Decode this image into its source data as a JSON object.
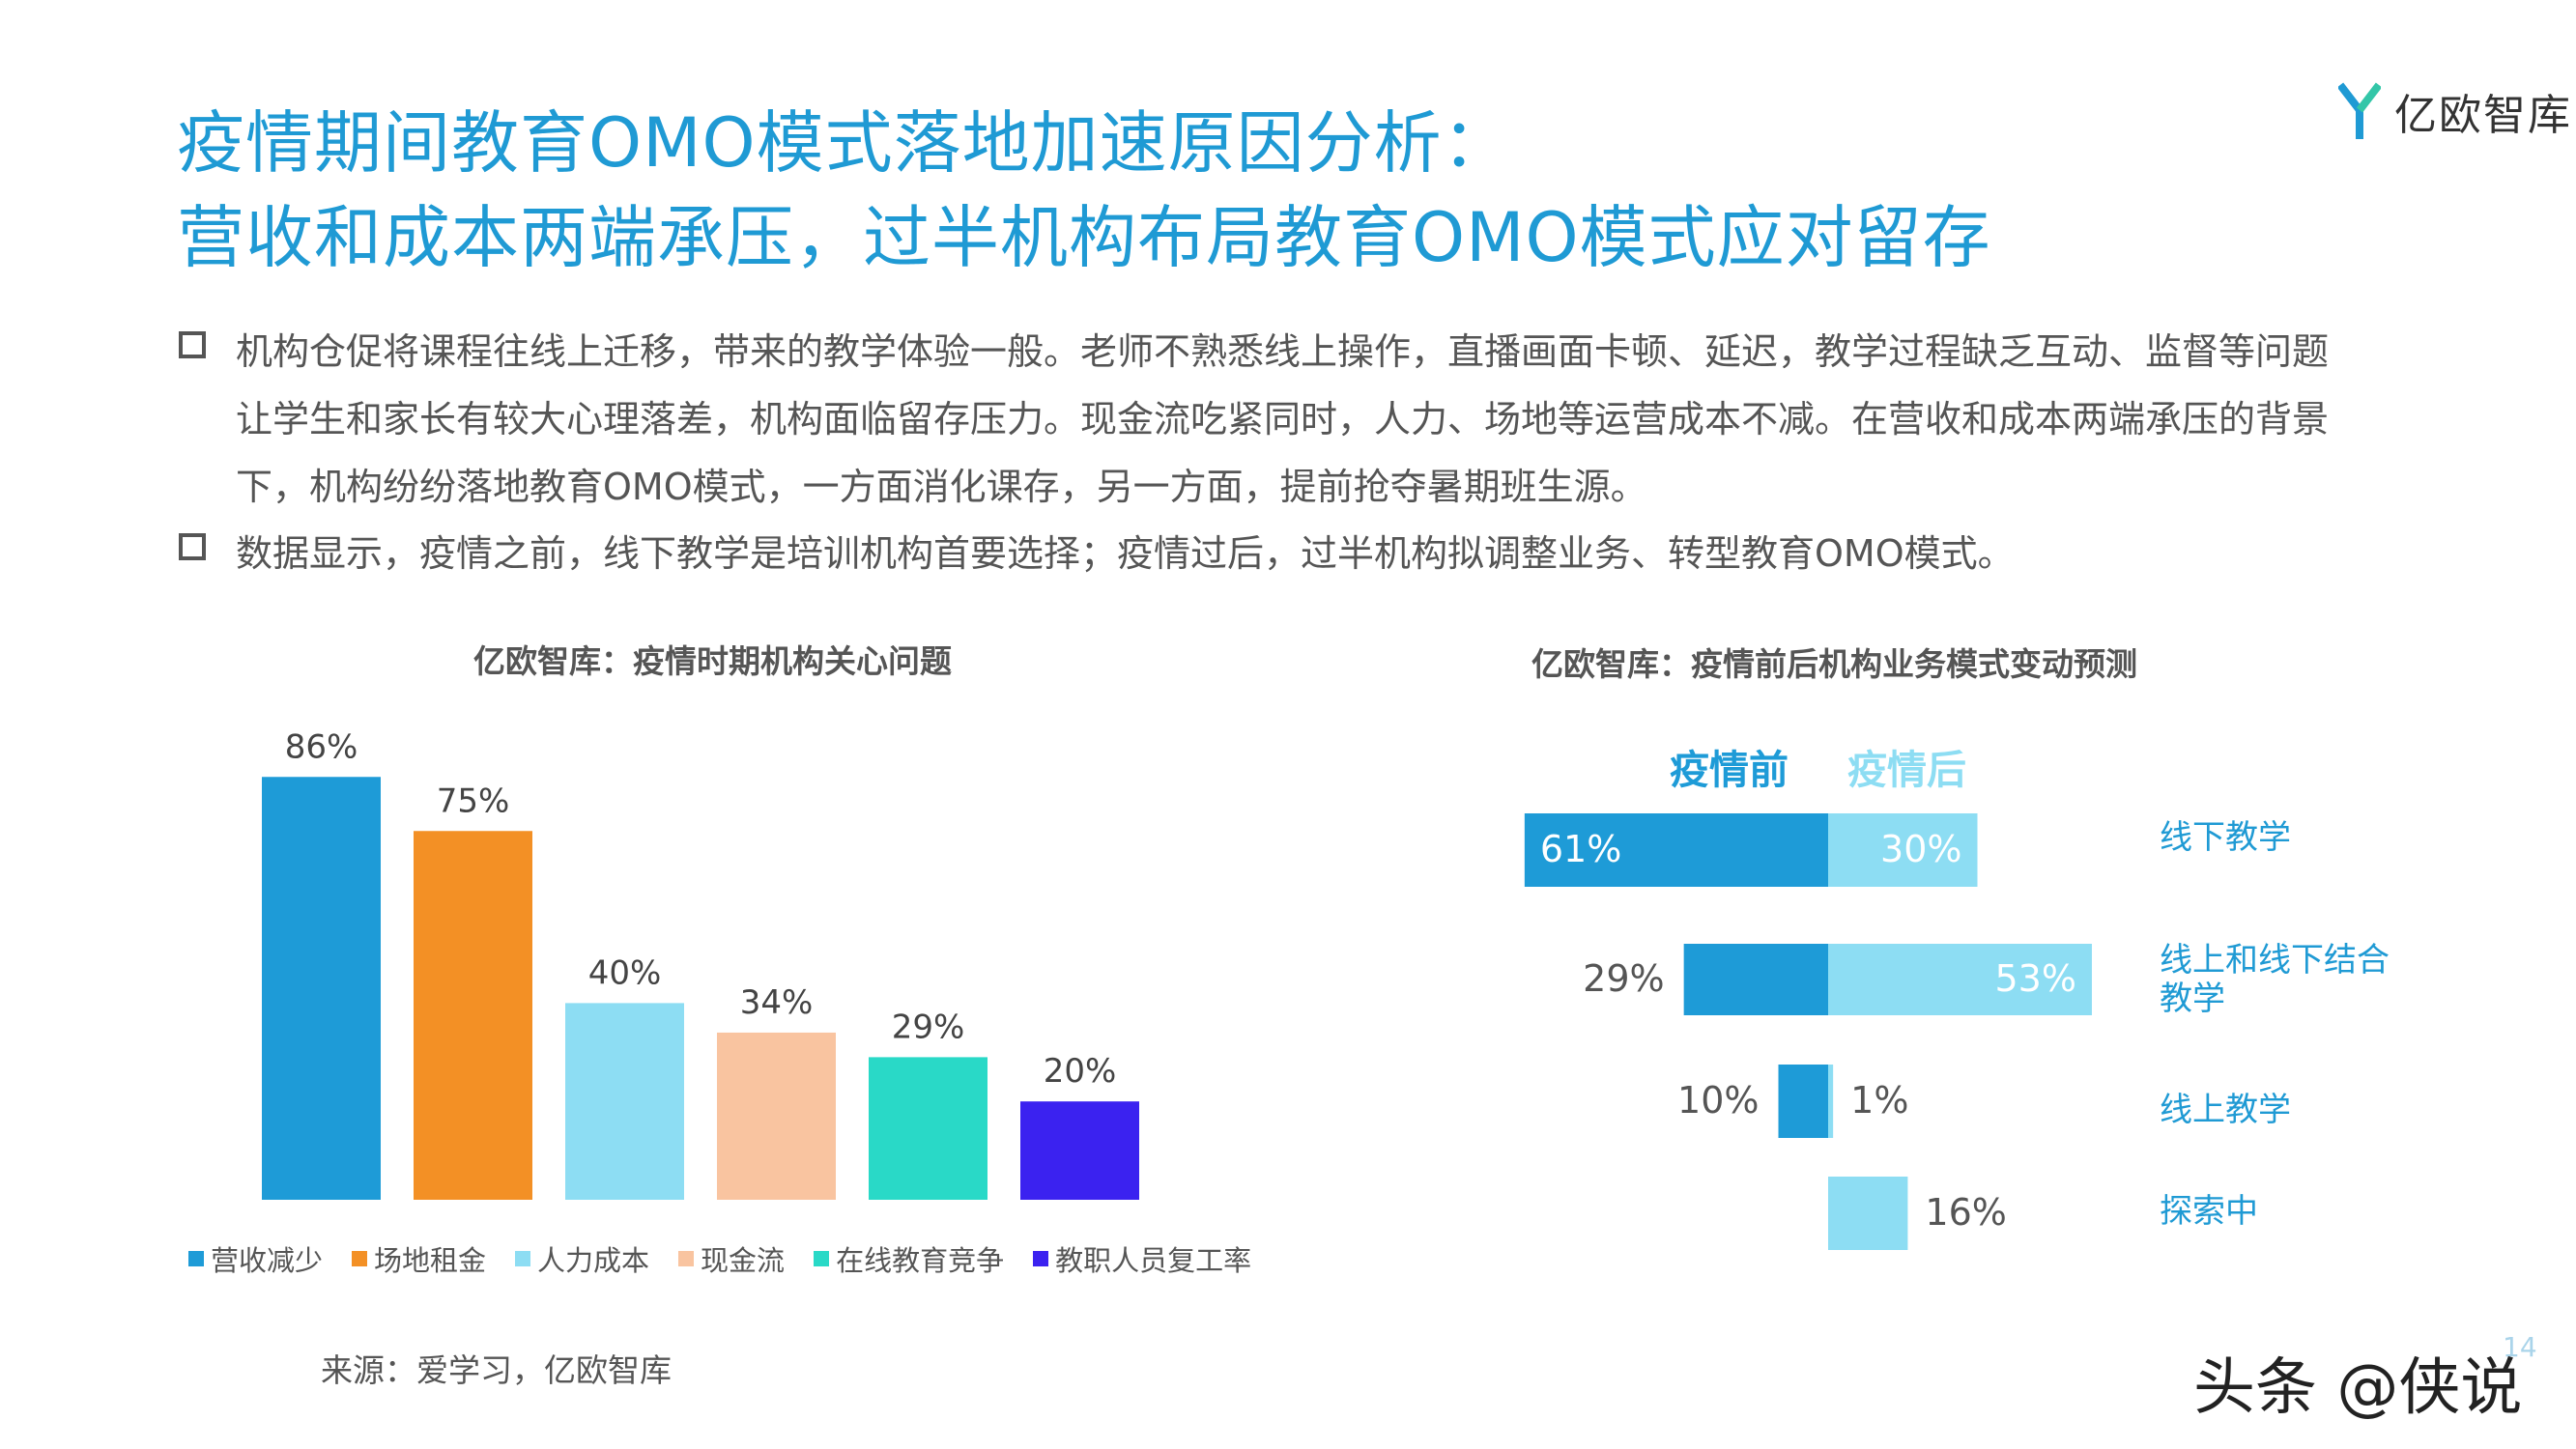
{
  "header": {
    "title_line1": "疫情期间教育OMO模式落地加速原因分析：",
    "title_line2": "营收和成本两端承压，过半机构布局教育OMO模式应对留存"
  },
  "logo": {
    "text": "亿欧智库",
    "icon": "yiou-logo-icon"
  },
  "bullets": [
    {
      "lines": [
        "机构仓促将课程往线上迁移，带来的教学体验一般。老师不熟悉线上操作，直播画面卡顿、延迟，教学过程缺乏互动、监督等问题",
        "让学生和家长有较大心理落差，机构面临留存压力。现金流吃紧同时，人力、场地等运营成本不减。在营收和成本两端承压的背景",
        "下，机构纷纷落地教育OMO模式，一方面消化课存，另一方面，提前抢夺暑期班生源。"
      ]
    },
    {
      "lines": [
        "数据显示，疫情之前，线下教学是培训机构首要选择；疫情过后，过半机构拟调整业务、转型教育OMO模式。"
      ]
    }
  ],
  "chart_data": [
    {
      "type": "bar",
      "title": "亿欧智库：疫情时期机构关心问题",
      "categories": [
        "营收减少",
        "场地租金",
        "人力成本",
        "现金流",
        "在线教育竞争",
        "教职人员复工率"
      ],
      "values": [
        86,
        75,
        40,
        34,
        29,
        20
      ],
      "labels": [
        "86%",
        "75%",
        "40%",
        "34%",
        "29%",
        "20%"
      ],
      "colors": [
        "#1e9bd7",
        "#f39025",
        "#8dddf3",
        "#f9c4a0",
        "#29d9c7",
        "#3b22f0"
      ],
      "legend": "bottom",
      "ylim": [
        0,
        100
      ]
    },
    {
      "type": "bar",
      "title": "亿欧智库：疫情前后机构业务模式变动预测",
      "series": [
        {
          "name": "疫情前",
          "values": [
            61,
            29,
            10,
            0
          ],
          "labels": [
            "61%",
            "29%",
            "10%",
            ""
          ],
          "color": "#1e9bd7"
        },
        {
          "name": "疫情后",
          "values": [
            30,
            53,
            1,
            16
          ],
          "labels": [
            "30%",
            "53%",
            "1%",
            "16%"
          ],
          "color": "#8dddf3"
        }
      ],
      "categories": [
        "线下教学",
        "线上和线下结合教学",
        "线上教学",
        "探索中"
      ],
      "category_lines": [
        [
          "线下教学"
        ],
        [
          "线上和线下结合",
          "教学"
        ],
        [
          "线上教学"
        ],
        [
          "探索中"
        ]
      ],
      "orientation": "horizontal-diverging"
    }
  ],
  "footer": {
    "source": "来源：爱学习，亿欧智库",
    "watermark": "头条 @侠说",
    "page_number": "14"
  }
}
